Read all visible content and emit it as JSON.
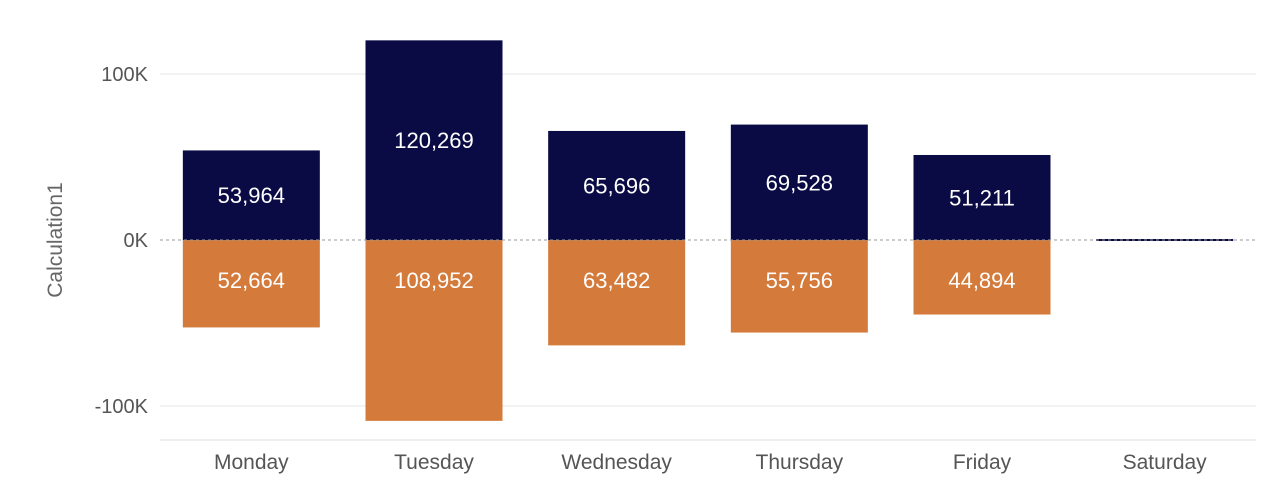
{
  "chart_data": {
    "type": "bar",
    "stacked": "diverging",
    "ylabel": "Calculation1",
    "xlabel": "",
    "ylim": [
      -120000,
      130000
    ],
    "yticks": [
      {
        "value": 100000,
        "label": "100K"
      },
      {
        "value": 0,
        "label": "0K"
      },
      {
        "value": -100000,
        "label": "-100K"
      }
    ],
    "grid": true,
    "categories": [
      "Monday",
      "Tuesday",
      "Wednesday",
      "Thursday",
      "Friday",
      "Saturday"
    ],
    "series": [
      {
        "color": "#0a0a45",
        "values": [
          53964,
          120269,
          65696,
          69528,
          51211,
          0
        ],
        "labels": [
          "53,964",
          "120,269",
          "65,696",
          "69,528",
          "51,211",
          ""
        ]
      },
      {
        "color": "#d47a3a",
        "values": [
          -52664,
          -108952,
          -63482,
          -55756,
          -44894,
          0
        ],
        "labels": [
          "52,664",
          "108,952",
          "63,482",
          "55,756",
          "44,894",
          ""
        ]
      }
    ]
  }
}
